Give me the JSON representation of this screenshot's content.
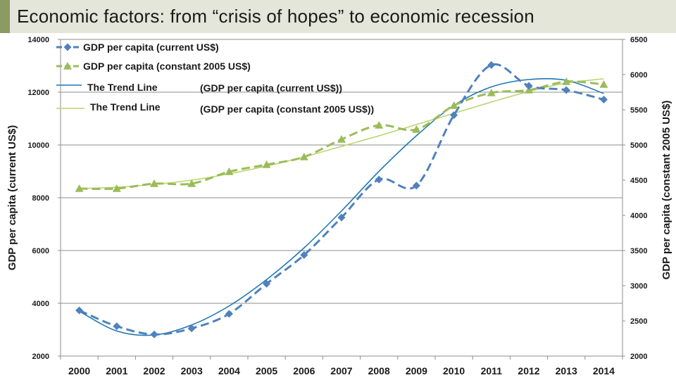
{
  "slide": {
    "title": "Economic factors: from “crisis of hopes” to economic recession"
  },
  "colors": {
    "current": "#4f81bd",
    "constant": "#9bbb59",
    "trend_current": "#1f77b4",
    "trend_constant": "#b6d56a",
    "grid": "#8c8c8c",
    "title_bg": "#e3e6d8",
    "accent": "#8c9a63"
  },
  "chart_data": {
    "type": "line",
    "title": "",
    "xlabel": "",
    "ylabel": "GDP per capita (current US$)",
    "ylabel_right": "GDP per capita (constant 2005 US$)",
    "categories": [
      "2000",
      "2001",
      "2002",
      "2003",
      "2004",
      "2005",
      "2006",
      "2007",
      "2008",
      "2009",
      "2010",
      "2011",
      "2012",
      "2013",
      "2014"
    ],
    "ylim": [
      2000,
      14000
    ],
    "ylim_right": [
      2000,
      6500
    ],
    "yticks": [
      2000,
      4000,
      6000,
      8000,
      10000,
      12000,
      14000
    ],
    "yticks_right": [
      2000,
      2500,
      3000,
      3500,
      4000,
      4500,
      5000,
      5500,
      6000,
      6500
    ],
    "grid": true,
    "series": [
      {
        "name": "GDP per capita (current US$)",
        "axis": "left",
        "style": "dashed-diamond",
        "values": [
          3730,
          3130,
          2820,
          3050,
          3600,
          4740,
          5830,
          7250,
          8690,
          8460,
          11130,
          13030,
          12240,
          12080,
          11720
        ]
      },
      {
        "name": "GDP per capita (constant 2005 US$)",
        "axis": "right",
        "style": "dashed-triangle",
        "values": [
          4380,
          4380,
          4450,
          4450,
          4620,
          4720,
          4830,
          5080,
          5280,
          5220,
          5560,
          5740,
          5780,
          5900,
          5860
        ]
      },
      {
        "name": "The Trend Line",
        "legend_note": "(GDP per capita (current US$))",
        "axis": "left",
        "style": "solid-trend",
        "values": [
          3700,
          2950,
          2800,
          3180,
          3900,
          4900,
          6100,
          7500,
          9000,
          10350,
          11500,
          12200,
          12480,
          12450,
          11950
        ]
      },
      {
        "name": "The Trend Line",
        "legend_note": "(GDP per capita (constant 2005 US$))",
        "axis": "right",
        "style": "solid-trend-light",
        "values": [
          4380,
          4400,
          4440,
          4500,
          4590,
          4700,
          4830,
          4980,
          5130,
          5290,
          5450,
          5610,
          5760,
          5880,
          5940
        ]
      }
    ]
  }
}
